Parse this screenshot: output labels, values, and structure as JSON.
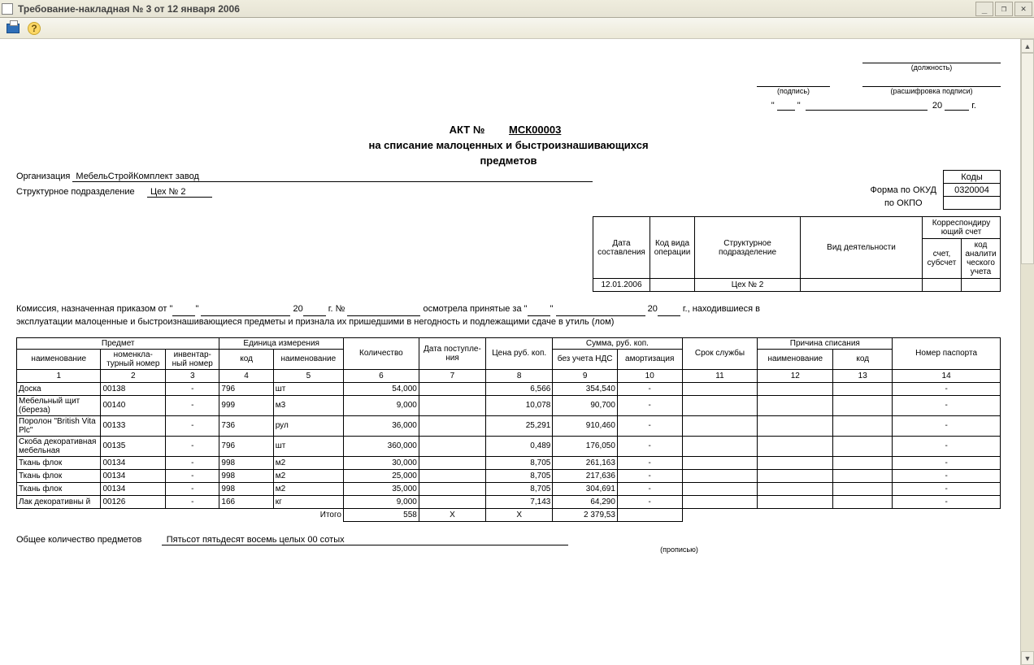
{
  "window": {
    "title": "Требование-накладная № 3 от 12 января 2006",
    "buttons": {
      "min": "_",
      "max": "❐",
      "close": "✕"
    }
  },
  "toolbar": {
    "help_glyph": "?"
  },
  "sig": {
    "position_cap": "(должность)",
    "sign_cap": "(подпись)",
    "decode_cap": "(расшифровка подписи)",
    "date_quote1": "\"",
    "date_quote2": "\"",
    "date_year_prefix": "20",
    "date_year_suffix": "г."
  },
  "act": {
    "prefix": "АКТ №",
    "number": "МСК00003",
    "subtitle1": "на списание малоценных и быстроизнашивающихся",
    "subtitle2": "предметов"
  },
  "codes": {
    "header": "Коды",
    "okud_label": "Форма по ОКУД",
    "okud_value": "0320004",
    "okpo_label": "по ОКПО",
    "okpo_value": ""
  },
  "org": {
    "org_label": "Организация",
    "org_value": "МебельСтройКомплект завод",
    "dept_label": "Структурное подразделение",
    "dept_value": "Цех № 2"
  },
  "hdr": {
    "date_label": "Дата составления",
    "op_label": "Код вида операции",
    "dept_label": "Структурное подразделение",
    "act_label": "Вид деятельности",
    "corr_label": "Корреспондиру ющий счет",
    "acc_label": "счет, субсчет",
    "anal_label": "код аналити ческого учета",
    "date_value": "12.01.2006",
    "op_value": "",
    "dept_value": "Цех № 2",
    "act_value": "",
    "acc_value": "",
    "anal_value": ""
  },
  "para": {
    "p1a": "Комиссия, назначенная приказом от \"",
    "p1b": "\"",
    "p1c": "20",
    "p1d": "г.    №",
    "p1e": "осмотрела принятые за \"",
    "p1f": "\"",
    "p1g": "20",
    "p1h": "г., находившиеся в",
    "p2": "эксплуатации малоценные и быстроизнашивающиеся предметы и признала их пришедшими в негодность и подлежащими сдаче в утиль (лом)"
  },
  "cols": {
    "subject": "Предмет",
    "subj_name": "наименование",
    "subj_nomen": "номенкла- турный номер",
    "subj_inv": "инвентар- ный номер",
    "unit": "Единица измерения",
    "unit_code": "код",
    "unit_name": "наименование",
    "qty": "Количество",
    "date_in": "Дата поступле- ния",
    "price": "Цена руб. коп.",
    "sum": "Сумма, руб. коп.",
    "sum_novat": "без учета НДС",
    "sum_amort": "амортизация",
    "life": "Срок службы",
    "reason": "Причина списания",
    "reason_name": "наименование",
    "reason_code": "код",
    "passport": "Номер паспорта",
    "n1": "1",
    "n2": "2",
    "n3": "3",
    "n4": "4",
    "n5": "5",
    "n6": "6",
    "n7": "7",
    "n8": "8",
    "n9": "9",
    "n10": "10",
    "n11": "11",
    "n12": "12",
    "n13": "13",
    "n14": "14"
  },
  "rows": [
    {
      "name": "Доска",
      "nomen": "00138",
      "inv": "-",
      "ucode": "796",
      "uname": "шт",
      "qty": "54,000",
      "date": "",
      "price": "6,566",
      "sumnv": "354,540",
      "amort": "-",
      "life": "",
      "rname": "",
      "rcode": "",
      "pass": "-"
    },
    {
      "name": "Мебельный щит (береза)",
      "nomen": "00140",
      "inv": "-",
      "ucode": "999",
      "uname": "м3",
      "qty": "9,000",
      "date": "",
      "price": "10,078",
      "sumnv": "90,700",
      "amort": "-",
      "life": "",
      "rname": "",
      "rcode": "",
      "pass": "-"
    },
    {
      "name": "Поролон \"British Vita Plc\"",
      "nomen": "00133",
      "inv": "-",
      "ucode": "736",
      "uname": "рул",
      "qty": "36,000",
      "date": "",
      "price": "25,291",
      "sumnv": "910,460",
      "amort": "-",
      "life": "",
      "rname": "",
      "rcode": "",
      "pass": "-"
    },
    {
      "name": "Скоба декоративная мебельная",
      "nomen": "00135",
      "inv": "-",
      "ucode": "796",
      "uname": "шт",
      "qty": "360,000",
      "date": "",
      "price": "0,489",
      "sumnv": "176,050",
      "amort": "-",
      "life": "",
      "rname": "",
      "rcode": "",
      "pass": "-"
    },
    {
      "name": "Ткань флок",
      "nomen": "00134",
      "inv": "-",
      "ucode": "998",
      "uname": "м2",
      "qty": "30,000",
      "date": "",
      "price": "8,705",
      "sumnv": "261,163",
      "amort": "-",
      "life": "",
      "rname": "",
      "rcode": "",
      "pass": "-"
    },
    {
      "name": "Ткань флок",
      "nomen": "00134",
      "inv": "-",
      "ucode": "998",
      "uname": "м2",
      "qty": "25,000",
      "date": "",
      "price": "8,705",
      "sumnv": "217,636",
      "amort": "-",
      "life": "",
      "rname": "",
      "rcode": "",
      "pass": "-"
    },
    {
      "name": "Ткань флок",
      "nomen": "00134",
      "inv": "-",
      "ucode": "998",
      "uname": "м2",
      "qty": "35,000",
      "date": "",
      "price": "8,705",
      "sumnv": "304,691",
      "amort": "-",
      "life": "",
      "rname": "",
      "rcode": "",
      "pass": "-"
    },
    {
      "name": "Лак декоративны й",
      "nomen": "00126",
      "inv": "-",
      "ucode": "166",
      "uname": "кг",
      "qty": "9,000",
      "date": "",
      "price": "7,143",
      "sumnv": "64,290",
      "amort": "-",
      "life": "",
      "rname": "",
      "rcode": "",
      "pass": "-"
    }
  ],
  "totals": {
    "label": "Итого",
    "qty": "558",
    "date": "X",
    "price": "X",
    "sumnv": "2 379,53"
  },
  "totq": {
    "label": "Общее количество предметов",
    "value": "Пятьсот пятьдесят восемь целых 00 сотых",
    "cap": "(прописью)"
  },
  "style": {
    "titlebar_bg": "#ece9d8",
    "doc_bg": "#ffffff",
    "border": "#000000",
    "scroll_bg": "#e5e2d0"
  }
}
